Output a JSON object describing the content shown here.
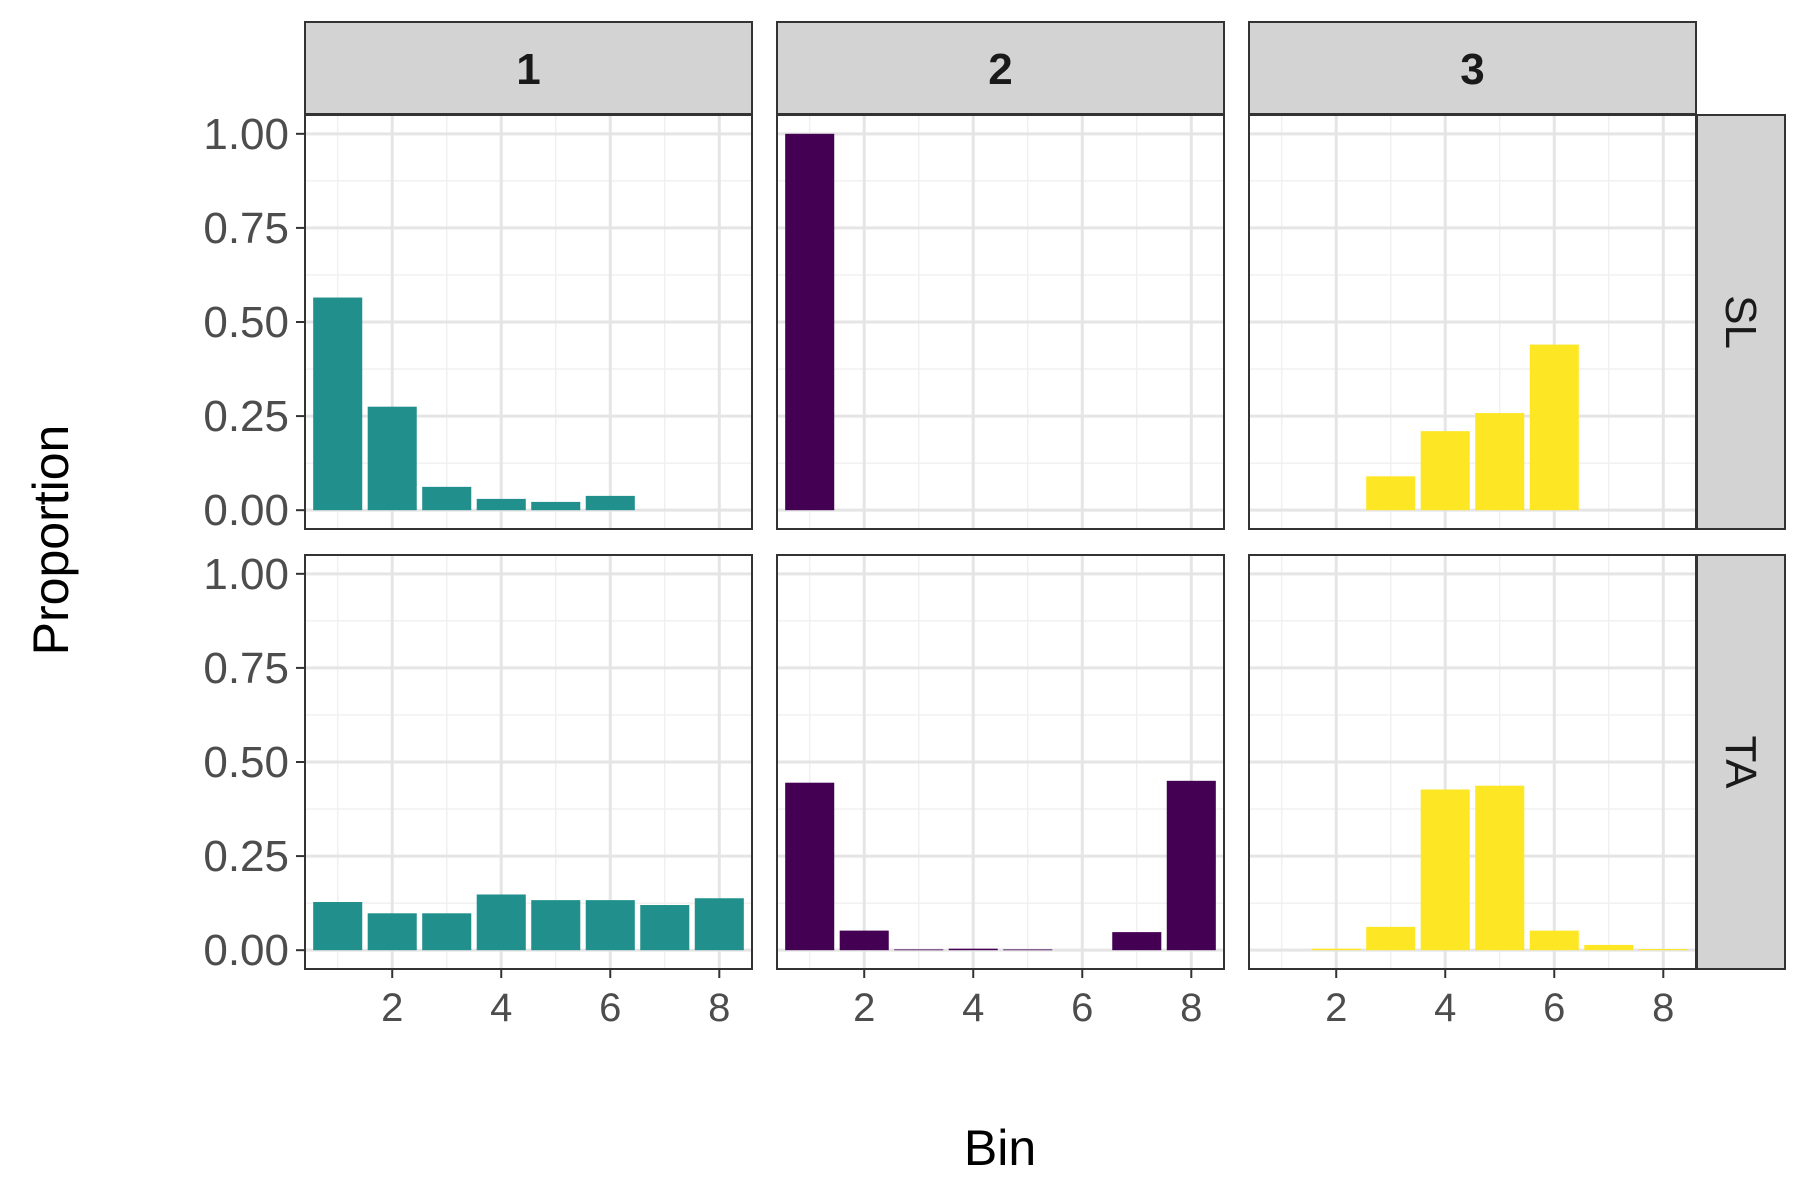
{
  "chart_data": {
    "type": "bar",
    "xlabel": "Bin",
    "ylabel": "Proportion",
    "xlim": [
      0.4,
      8.6
    ],
    "ylim": [
      -0.05,
      1.05
    ],
    "x_ticks": [
      2,
      4,
      6,
      8
    ],
    "x_tick_labels": [
      "2",
      "4",
      "6",
      "8"
    ],
    "y_ticks": [
      0,
      0.25,
      0.5,
      0.75,
      1.0
    ],
    "y_tick_labels": [
      "0.00",
      "0.25",
      "0.50",
      "0.75",
      "1.00"
    ],
    "grid": true,
    "facet_columns": [
      "1",
      "2",
      "3"
    ],
    "facet_rows": [
      "SL",
      "TA"
    ],
    "column_colors": {
      "1": "#21908C",
      "2": "#440154",
      "3": "#FDE725"
    },
    "bins": [
      1,
      2,
      3,
      4,
      5,
      6,
      7,
      8
    ],
    "panels": [
      {
        "column": "1",
        "row": "SL",
        "values": [
          0.565,
          0.275,
          0.062,
          0.03,
          0.022,
          0.038,
          0,
          0
        ]
      },
      {
        "column": "2",
        "row": "SL",
        "values": [
          1.0,
          0,
          0,
          0,
          0,
          0,
          0,
          0
        ]
      },
      {
        "column": "3",
        "row": "SL",
        "values": [
          0,
          0,
          0.09,
          0.21,
          0.258,
          0.44,
          0,
          0
        ]
      },
      {
        "column": "1",
        "row": "TA",
        "values": [
          0.128,
          0.098,
          0.098,
          0.148,
          0.133,
          0.133,
          0.12,
          0.138
        ]
      },
      {
        "column": "2",
        "row": "TA",
        "values": [
          0.445,
          0.052,
          0.002,
          0.004,
          0.002,
          0,
          0.048,
          0.45
        ]
      },
      {
        "column": "3",
        "row": "TA",
        "values": [
          0,
          0.004,
          0.062,
          0.427,
          0.437,
          0.052,
          0.014,
          0.003
        ]
      }
    ]
  }
}
